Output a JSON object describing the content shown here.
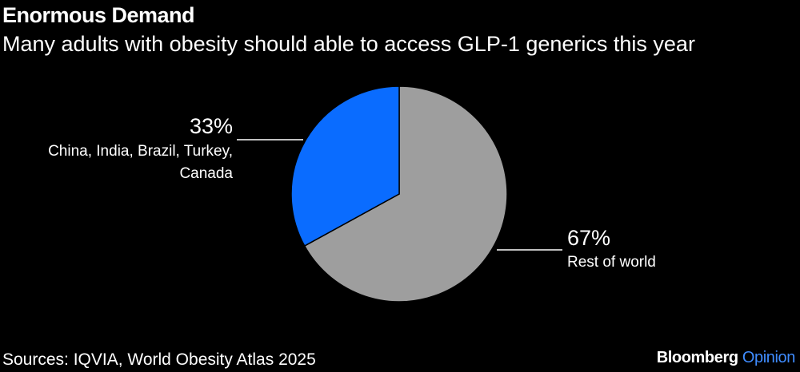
{
  "header": {
    "title": "Enormous Demand",
    "subtitle": "Many adults with obesity should able to access GLP-1 generics this year"
  },
  "chart_data": {
    "type": "pie",
    "title": "Enormous Demand",
    "subtitle": "Many adults with obesity should able to access GLP-1 generics this year",
    "start": "12 o'clock",
    "direction": "clockwise",
    "slices": [
      {
        "label_lines": [
          "Rest of world"
        ],
        "value": 67,
        "value_label": "67%",
        "color": "#9e9e9e"
      },
      {
        "label_lines": [
          "China, India, Brazil, Turkey,",
          "Canada"
        ],
        "value": 33,
        "value_label": "33%",
        "color": "#0a6cff"
      }
    ]
  },
  "footer": {
    "source": "Sources: IQVIA, World Obesity Atlas 2025",
    "brand_name": "Bloomberg",
    "brand_section": "Opinion",
    "brand_section_color": "#3f8cff"
  }
}
